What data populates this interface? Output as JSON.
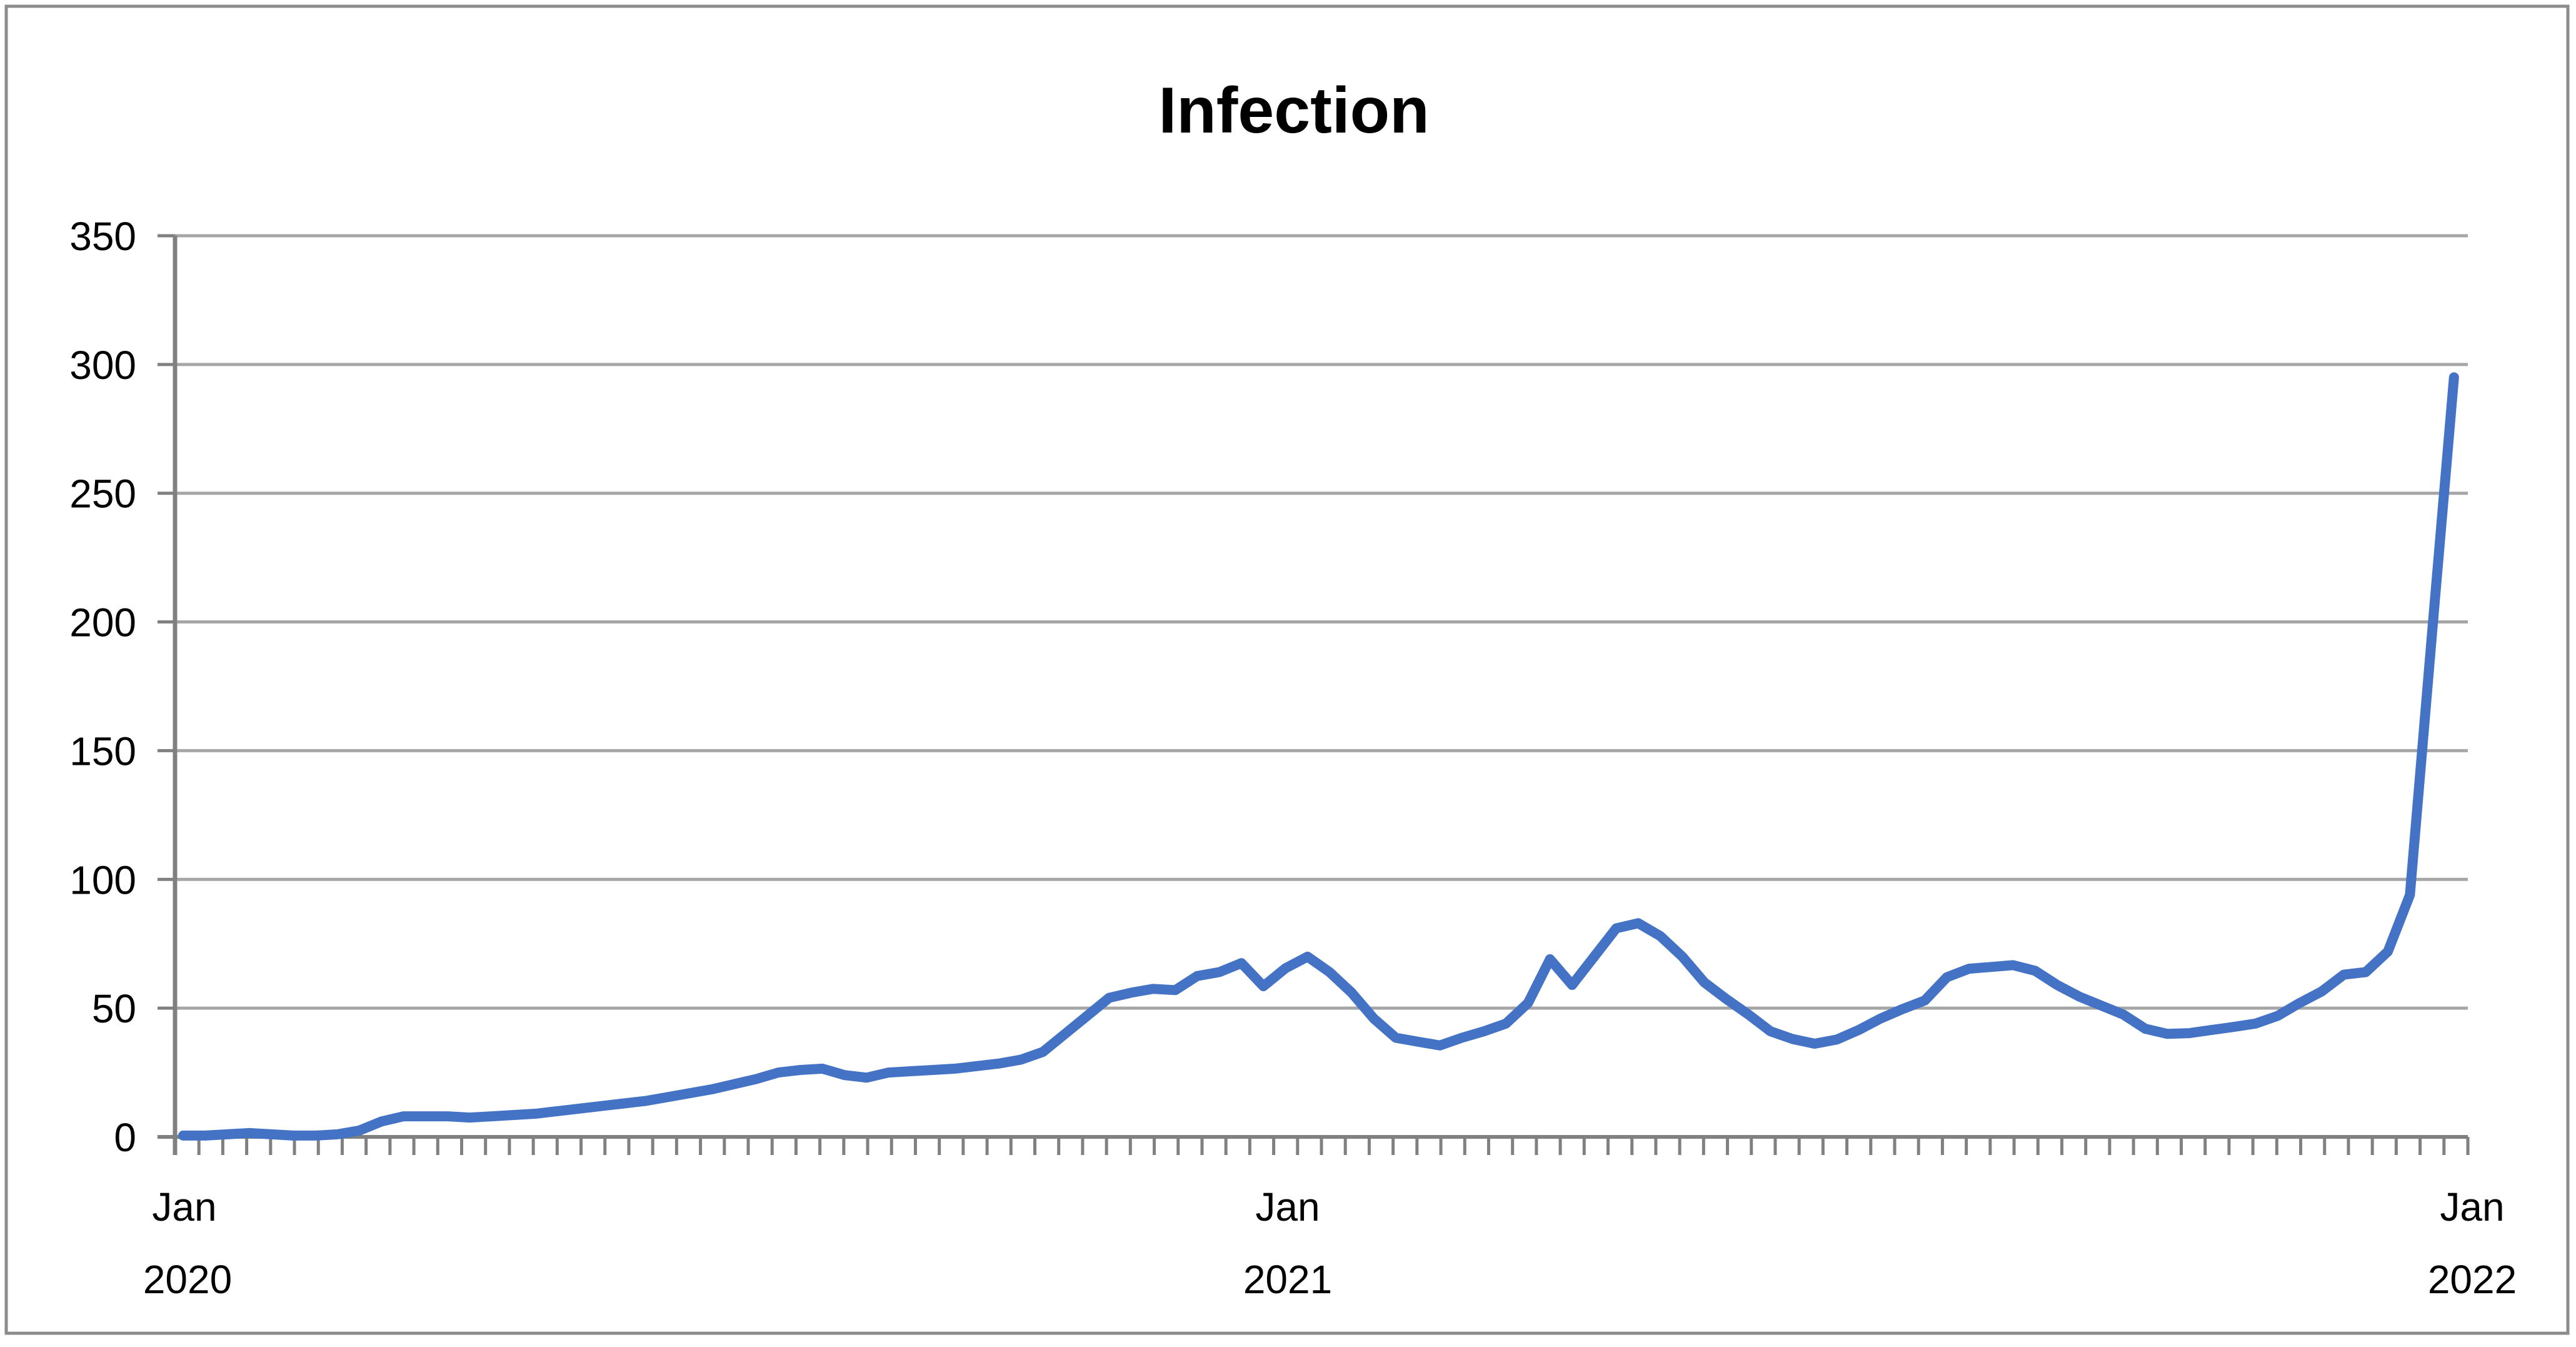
{
  "window": {
    "background_color": "#ffffff",
    "frame_border_color": "#8c8c8c"
  },
  "chart_data": {
    "type": "line",
    "title": "Infection",
    "xlabel": "",
    "ylabel": "",
    "legend": "none",
    "grid": "horizontal",
    "gridline_color": "#a6a6a6",
    "axis_color": "#808080",
    "y_axis": {
      "min": 0,
      "max": 350,
      "step": 50,
      "tick_labels": [
        "0",
        "50",
        "100",
        "150",
        "200",
        "250",
        "300",
        "350"
      ]
    },
    "x_axis": {
      "unit": "week",
      "minor_tick_intervals": 96,
      "date_labels": [
        {
          "month": "Jan",
          "year": "2020",
          "anchor": "start"
        },
        {
          "month": "Jan",
          "year": "2021",
          "anchor": "middle"
        },
        {
          "month": "Jan",
          "year": "2022",
          "anchor": "end"
        }
      ]
    },
    "series": [
      {
        "name": "Infection",
        "color": "#4472c4",
        "x_start": "Jan 2020",
        "x_end": "Jan 2022",
        "cadence": "weekly",
        "values": [
          0.5,
          0.5,
          1,
          1.5,
          1,
          0.5,
          0.5,
          1,
          2.5,
          6,
          8,
          8,
          8,
          7.5,
          8,
          8.5,
          9,
          10,
          11,
          12,
          13,
          14,
          15.5,
          17,
          18.5,
          20.5,
          22.5,
          25,
          26,
          26.5,
          24,
          23,
          25,
          25.5,
          26,
          26.5,
          27.5,
          28.5,
          30,
          33,
          40,
          47,
          54,
          56,
          57.5,
          57,
          62.5,
          64,
          67.5,
          58.5,
          65.5,
          70,
          64,
          56,
          46,
          38.5,
          37,
          35.5,
          38.5,
          41,
          44,
          52,
          69,
          59,
          70,
          81,
          83,
          78,
          70,
          60,
          53.5,
          47.5,
          41,
          38,
          36.2,
          37.8,
          41.5,
          46,
          49.7,
          53,
          62,
          65.3,
          66,
          66.7,
          64.5,
          59,
          54.5,
          51,
          47.5,
          42,
          40,
          40.3,
          41.5,
          42.7,
          44,
          47,
          52,
          56.5,
          63,
          64,
          72,
          94,
          195,
          295
        ]
      }
    ]
  }
}
